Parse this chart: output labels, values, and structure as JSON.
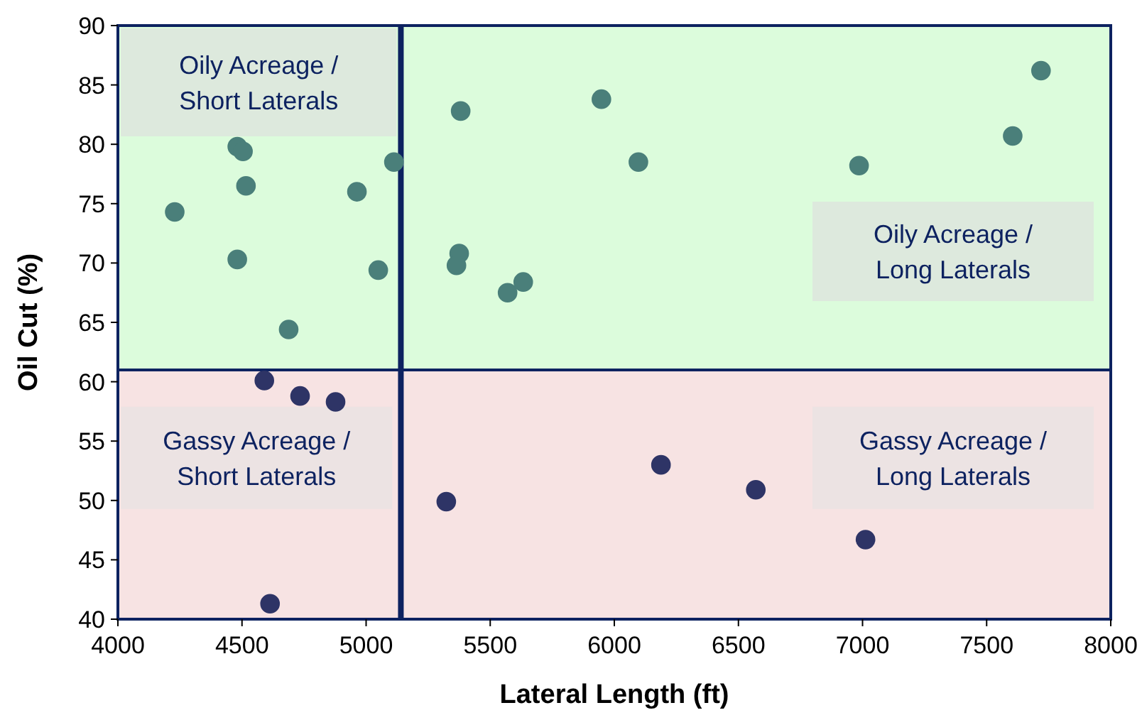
{
  "chart_data": {
    "type": "scatter",
    "xlabel": "Lateral Length (ft)",
    "ylabel": "Oil Cut (%)",
    "xlim": [
      4000,
      8000
    ],
    "xticks": [
      4000,
      4500,
      5000,
      5500,
      6000,
      6500,
      7000,
      7500,
      8000
    ],
    "ylim": [
      40,
      90
    ],
    "yticks": [
      40,
      45,
      50,
      55,
      60,
      65,
      70,
      75,
      80,
      85,
      90
    ],
    "grid": false,
    "marker": "circle",
    "series": [
      {
        "color": "#4a7f7a",
        "x": [
          4229,
          4481,
          4504,
          4516,
          4481,
          4688,
          4963,
          5049,
          5112,
          5381,
          5375,
          5364,
          5570,
          5633,
          5948,
          6097,
          6986,
          7605,
          7719
        ],
        "values": [
          74.3,
          79.8,
          79.4,
          76.5,
          70.3,
          64.4,
          76.0,
          69.4,
          78.5,
          82.8,
          70.8,
          69.8,
          67.5,
          68.4,
          83.8,
          78.5,
          78.2,
          80.7,
          86.2
        ]
      },
      {
        "color": "#2e3466",
        "x": [
          4590,
          4734,
          4877,
          4613,
          5323,
          6188,
          6570,
          7012
        ],
        "values": [
          60.1,
          58.8,
          58.3,
          41.3,
          49.9,
          53.0,
          50.9,
          46.7
        ]
      }
    ],
    "ref_lines": [
      {
        "axis": "x",
        "value": 5140,
        "color": "#0d2260"
      },
      {
        "axis": "y",
        "value": 61,
        "color": "#0d2260"
      }
    ],
    "bands": [
      {
        "axis": "y",
        "from": 61,
        "to": 90,
        "color": "#dcfcdc"
      },
      {
        "axis": "y",
        "from": 40,
        "to": 61,
        "color": "#f7e3e3"
      }
    ],
    "annotations": [
      "Oily Acreage /\nShort Laterals",
      "Oily Acreage /\nLong Laterals",
      "Gassy Acreage /\nShort Laterals",
      "Gassy Acreage /\nLong Laterals"
    ]
  }
}
